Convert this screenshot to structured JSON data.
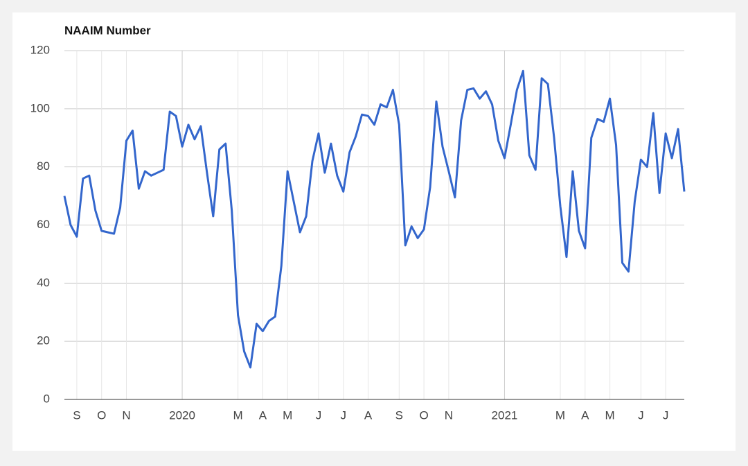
{
  "chart_data": {
    "type": "line",
    "title": "NAAIM Number",
    "categories": [
      null,
      null,
      "S",
      null,
      null,
      null,
      "O",
      null,
      null,
      null,
      "N",
      null,
      null,
      null,
      null,
      null,
      null,
      null,
      null,
      "2020",
      null,
      null,
      null,
      null,
      null,
      null,
      null,
      null,
      "M",
      null,
      null,
      null,
      "A",
      null,
      null,
      null,
      "M",
      null,
      null,
      null,
      null,
      "J",
      null,
      null,
      null,
      "J",
      null,
      null,
      null,
      "A",
      null,
      null,
      null,
      null,
      "S",
      null,
      null,
      null,
      "O",
      null,
      null,
      null,
      "N",
      null,
      null,
      null,
      null,
      null,
      null,
      null,
      null,
      "2021",
      null,
      null,
      null,
      null,
      null,
      null,
      null,
      null,
      "M",
      null,
      null,
      null,
      "A",
      null,
      null,
      null,
      "M",
      null,
      null,
      null,
      null,
      "J",
      null,
      null,
      null,
      "J",
      null,
      null,
      null
    ],
    "series": [
      {
        "name": "NAAIM Number",
        "color": "#3366cc",
        "values": [
          70,
          60,
          56,
          76,
          77,
          65,
          58,
          57.5,
          57,
          66,
          89,
          92.5,
          72.5,
          78.5,
          77,
          78,
          79,
          99,
          97.5,
          87,
          94.5,
          89.5,
          94,
          78,
          63,
          86,
          88,
          65,
          29,
          16.5,
          11,
          26,
          23.5,
          27,
          28.5,
          46,
          78.5,
          68,
          57.5,
          63,
          82,
          91.5,
          78,
          88,
          77,
          71.5,
          85,
          90.5,
          98,
          97.5,
          94.5,
          101.5,
          100.5,
          106.5,
          94.5,
          53,
          59.5,
          55.5,
          58.5,
          73,
          102.5,
          87,
          78.5,
          69.5,
          96,
          106.5,
          107,
          103.5,
          106,
          101.5,
          89,
          83,
          94.5,
          106.5,
          113,
          84,
          79,
          110.5,
          108.5,
          90,
          66.5,
          49,
          78.5,
          58,
          52,
          90,
          96.5,
          95.5,
          103.5,
          87.5,
          47,
          44,
          68,
          82.5,
          80,
          98.5,
          71,
          91.5,
          83,
          93,
          71.5
        ]
      }
    ],
    "ylim": [
      0,
      120
    ],
    "yticks": [
      0,
      20,
      40,
      60,
      80,
      100,
      120
    ],
    "grid": true
  }
}
